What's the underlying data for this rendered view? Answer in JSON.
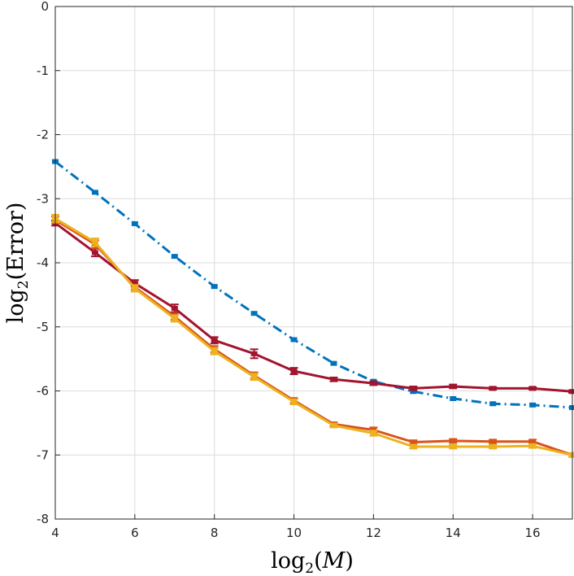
{
  "chart_data": {
    "type": "line",
    "title": "",
    "xlabel": {
      "func": "log",
      "sub": "2",
      "open": "(",
      "arg": "M",
      "close": ")"
    },
    "ylabel": {
      "func": "log",
      "sub": "2",
      "open": "(",
      "arg": "Error",
      "close": ")"
    },
    "xlim": [
      4,
      17
    ],
    "ylim": [
      -8,
      0
    ],
    "xticks": [
      4,
      6,
      8,
      10,
      12,
      14,
      16
    ],
    "yticks": [
      0,
      -1,
      -2,
      -3,
      -4,
      -5,
      -6,
      -7,
      -8
    ],
    "grid": true,
    "x": [
      4,
      5,
      6,
      7,
      8,
      9,
      10,
      11,
      12,
      13,
      14,
      15,
      16,
      17
    ],
    "series": [
      {
        "name": "blue dash-dot",
        "color": "#0072BD",
        "dash": "dashdot",
        "values": [
          -2.42,
          -2.9,
          -3.39,
          -3.9,
          -4.37,
          -4.79,
          -5.2,
          -5.57,
          -5.85,
          -6.01,
          -6.12,
          -6.2,
          -6.22,
          -6.26
        ],
        "errors": [
          0,
          0,
          0,
          0,
          0,
          0,
          0,
          0,
          0,
          0,
          0,
          0,
          0,
          0
        ]
      },
      {
        "name": "dark red",
        "color": "#A2142F",
        "dash": "solid",
        "values": [
          -3.38,
          -3.84,
          -4.32,
          -4.71,
          -5.21,
          -5.42,
          -5.69,
          -5.82,
          -5.88,
          -5.96,
          -5.93,
          -5.96,
          -5.96,
          -6.01
        ],
        "errors": [
          0.04,
          0.06,
          0.05,
          0.06,
          0.05,
          0.07,
          0.05,
          0.03,
          0.03,
          0.03,
          0.03,
          0.02,
          0.02,
          0.02
        ]
      },
      {
        "name": "orange",
        "color": "#D95319",
        "dash": "solid",
        "values": [
          -3.33,
          -3.71,
          -4.38,
          -4.84,
          -5.35,
          -5.76,
          -6.15,
          -6.52,
          -6.61,
          -6.8,
          -6.78,
          -6.79,
          -6.79,
          -7.0
        ],
        "errors": [
          0.05,
          0.06,
          0.04,
          0.05,
          0.05,
          0.05,
          0.04,
          0.03,
          0.04,
          0.03,
          0.03,
          0.03,
          0.03,
          0.03
        ]
      },
      {
        "name": "yellow",
        "color": "#EDB120",
        "dash": "solid",
        "values": [
          -3.31,
          -3.68,
          -4.4,
          -4.87,
          -5.38,
          -5.78,
          -6.17,
          -6.54,
          -6.66,
          -6.87,
          -6.87,
          -6.87,
          -6.86,
          -7.0
        ],
        "errors": [
          0.06,
          0.06,
          0.05,
          0.05,
          0.05,
          0.05,
          0.04,
          0.03,
          0.04,
          0.03,
          0.03,
          0.03,
          0.03,
          0.03
        ]
      }
    ]
  }
}
